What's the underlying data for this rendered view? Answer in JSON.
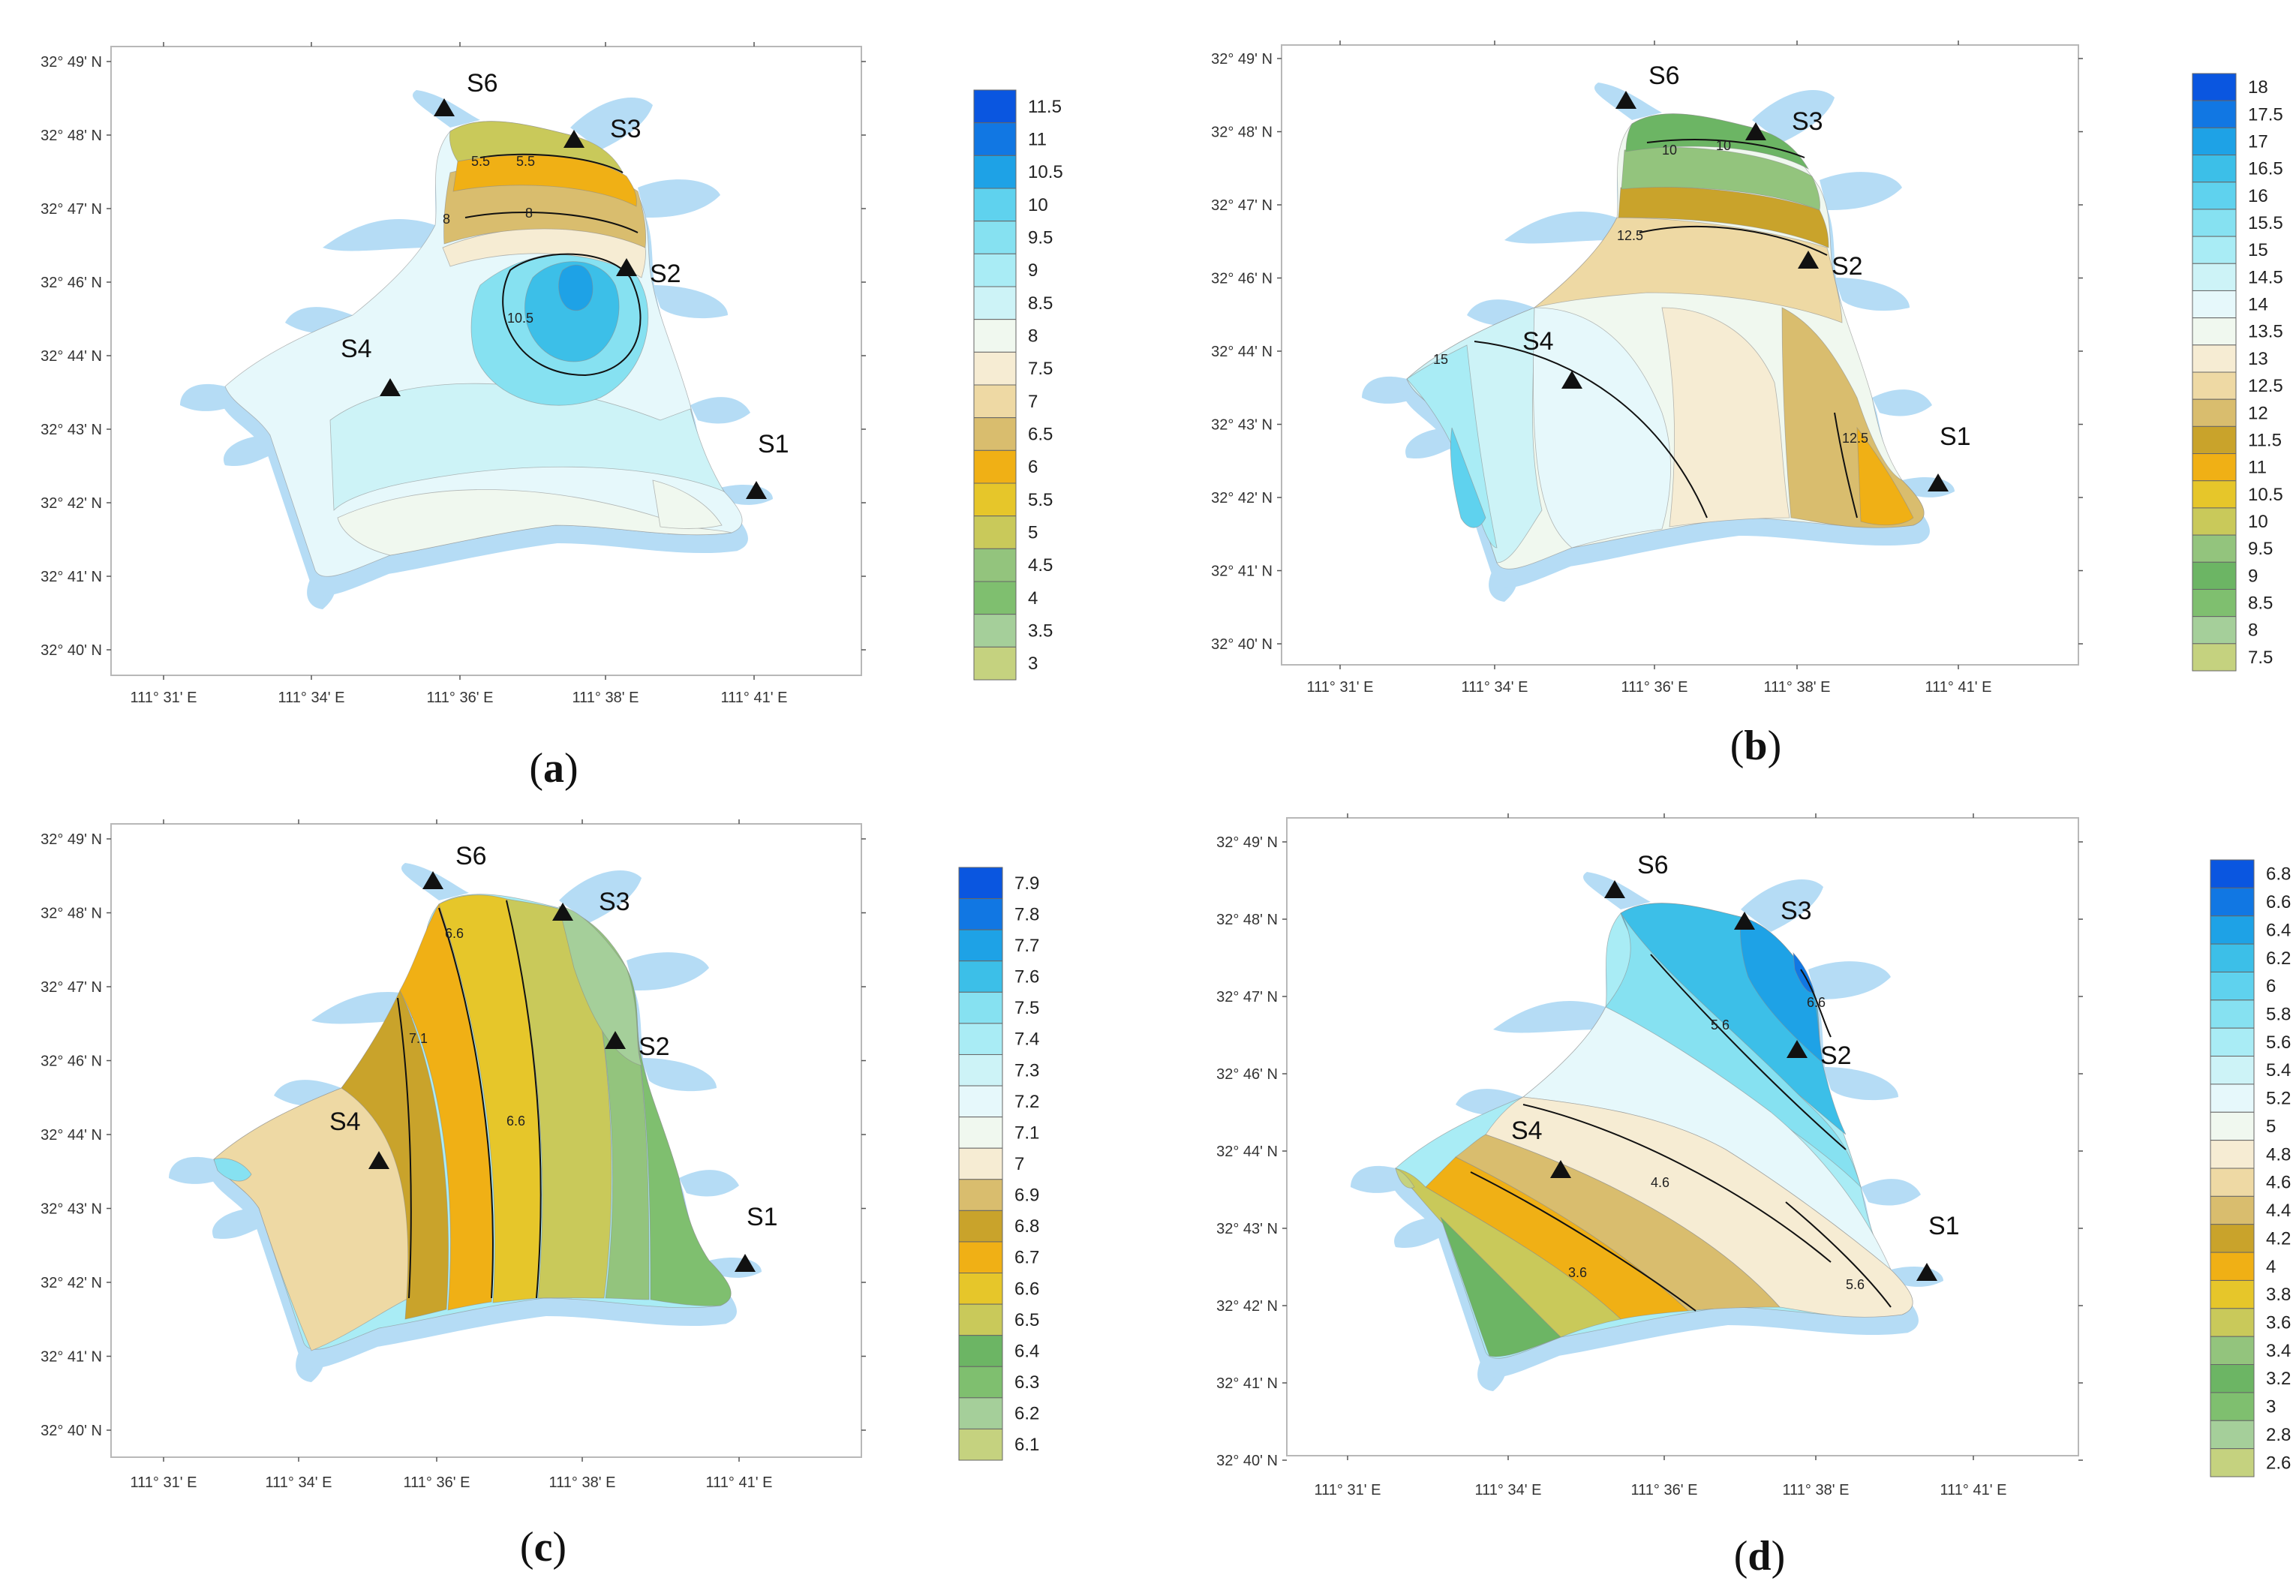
{
  "lat_labels": [
    "32° 49' N",
    "32° 48' N",
    "32° 47' N",
    "32° 46' N",
    "32° 44' N",
    "32° 43' N",
    "32° 42' N",
    "32° 41' N",
    "32° 40' N"
  ],
  "lon_labels": [
    "111° 31' E",
    "111° 34' E",
    "111° 36' E",
    "111° 38' E",
    "111° 41' E"
  ],
  "station_names": [
    "S1",
    "S2",
    "S3",
    "S4",
    "S6"
  ],
  "colors": {
    "water": "#b5dcf5",
    "land": "#ffffff",
    "frame": "#b8b8b8",
    "scale": [
      "#c5d27f",
      "#a5cf9a",
      "#7fbf6f",
      "#6cb564",
      "#93c47d",
      "#c9c95a",
      "#e6c62a",
      "#f0b015",
      "#c9a32b",
      "#d9bd6e",
      "#eed9a4",
      "#f6ecd3",
      "#f0f8ef",
      "#e6f8fb",
      "#cdf3f7",
      "#a9ecf5",
      "#86e1f1",
      "#5fd2ee",
      "#3cbfe8",
      "#1ea2e6",
      "#1177e3",
      "#0a56e0"
    ]
  },
  "panels": [
    {
      "id": "a",
      "caption_letter": "a",
      "colorbar_labels": [
        "11.5",
        "11",
        "10.5",
        "10",
        "9.5",
        "9",
        "8.5",
        "8",
        "7.5",
        "7",
        "6.5",
        "6",
        "5.5",
        "5",
        "4.5",
        "4",
        "3.5",
        "3"
      ],
      "contour_labels": [
        "5.5",
        "5.5",
        "8",
        "8",
        "10.5"
      ]
    },
    {
      "id": "b",
      "caption_letter": "b",
      "colorbar_labels": [
        "18",
        "17.5",
        "17",
        "16.5",
        "16",
        "15.5",
        "15",
        "14.5",
        "14",
        "13.5",
        "13",
        "12.5",
        "12",
        "11.5",
        "11",
        "10.5",
        "10",
        "9.5",
        "9",
        "8.5",
        "8",
        "7.5"
      ],
      "contour_labels": [
        "10",
        "10",
        "12.5",
        "15",
        "12.5"
      ]
    },
    {
      "id": "c",
      "caption_letter": "c",
      "colorbar_labels": [
        "7.9",
        "7.8",
        "7.7",
        "7.6",
        "7.5",
        "7.4",
        "7.3",
        "7.2",
        "7.1",
        "7",
        "6.9",
        "6.8",
        "6.7",
        "6.6",
        "6.5",
        "6.4",
        "6.3",
        "6.2",
        "6.1"
      ],
      "contour_labels": [
        "6.6",
        "7.1",
        "6.6"
      ]
    },
    {
      "id": "d",
      "caption_letter": "d",
      "colorbar_labels": [
        "6.8",
        "6.6",
        "6.4",
        "6.2",
        "6",
        "5.8",
        "5.6",
        "5.4",
        "5.2",
        "5",
        "4.8",
        "4.6",
        "4.4",
        "4.2",
        "4",
        "3.8",
        "3.6",
        "3.4",
        "3.2",
        "3",
        "2.8",
        "2.6"
      ],
      "contour_labels": [
        "6.6",
        "5.6",
        "4.6",
        "3.6",
        "5.6"
      ]
    }
  ]
}
